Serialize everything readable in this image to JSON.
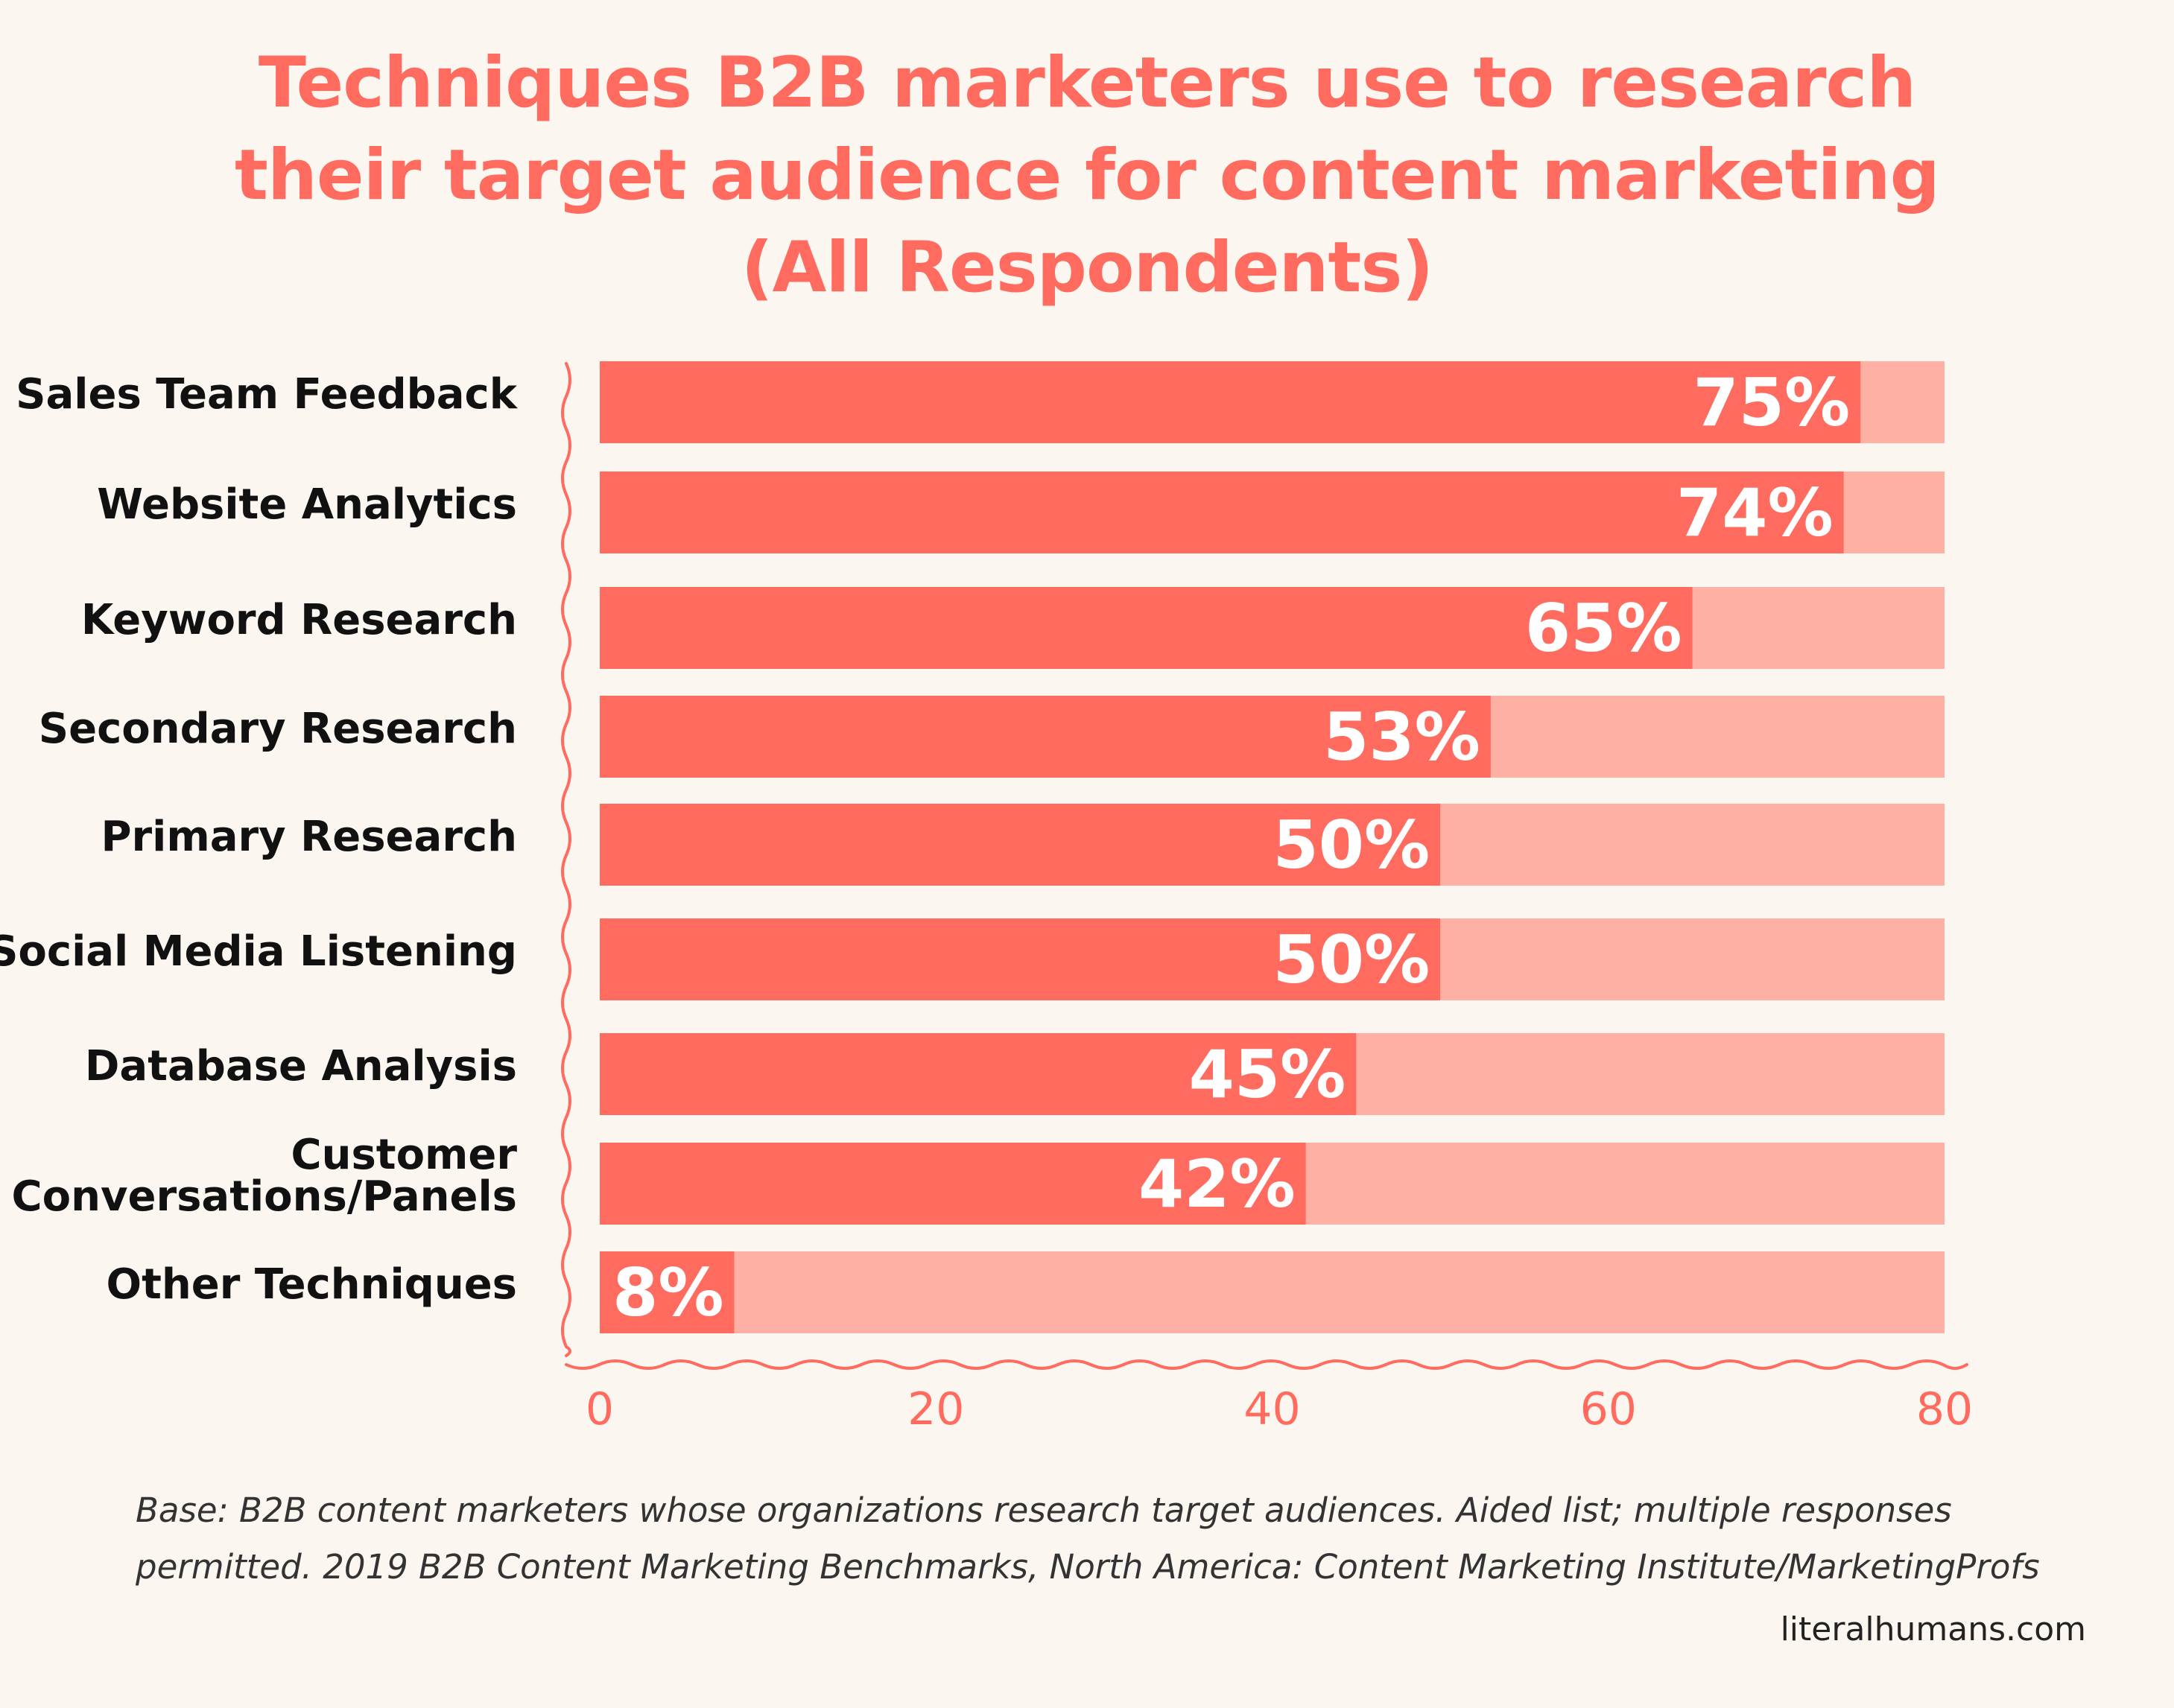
{
  "colors": {
    "accent": "#FF6B5E",
    "track": "#FFB0A4",
    "label": "#111111",
    "value_text": "#FFFFFF",
    "background": "#FBF7F0"
  },
  "title_lines": [
    "Techniques B2B marketers use to research",
    "their target audience for content marketing",
    "(All Respondents)"
  ],
  "note_lines": [
    "Base: B2B content marketers whose organizations research target audiences. Aided list; multiple responses",
    "permitted. 2019 B2B Content Marketing Benchmarks, North America: Content Marketing Institute/MarketingProfs"
  ],
  "source": "literalhumans.com",
  "chart_data": {
    "type": "bar",
    "orientation": "horizontal",
    "categories": [
      "Sales Team Feedback",
      "Website Analytics",
      "Keyword Research",
      "Secondary Research",
      "Primary Research",
      "Social Media Listening",
      "Database Analysis",
      "Customer Conversations/Panels",
      "Other Techniques"
    ],
    "category_label_lines": [
      [
        "Sales Team Feedback"
      ],
      [
        "Website Analytics"
      ],
      [
        "Keyword Research"
      ],
      [
        "Secondary Research"
      ],
      [
        "Primary Research"
      ],
      [
        "Social Media Listening"
      ],
      [
        "Database Analysis"
      ],
      [
        "Customer",
        "Conversations/Panels"
      ],
      [
        "Other Techniques"
      ]
    ],
    "values": [
      75,
      74,
      65,
      53,
      50,
      50,
      45,
      42,
      8
    ],
    "data_labels": [
      "75%",
      "74%",
      "65%",
      "53%",
      "50%",
      "50%",
      "45%",
      "42%",
      "8%"
    ],
    "xlim": [
      0,
      80
    ],
    "xticks": [
      0,
      20,
      40,
      60,
      80
    ],
    "xtick_labels": [
      "0",
      "20",
      "40",
      "60",
      "80"
    ],
    "grid": false,
    "legend": "none"
  }
}
